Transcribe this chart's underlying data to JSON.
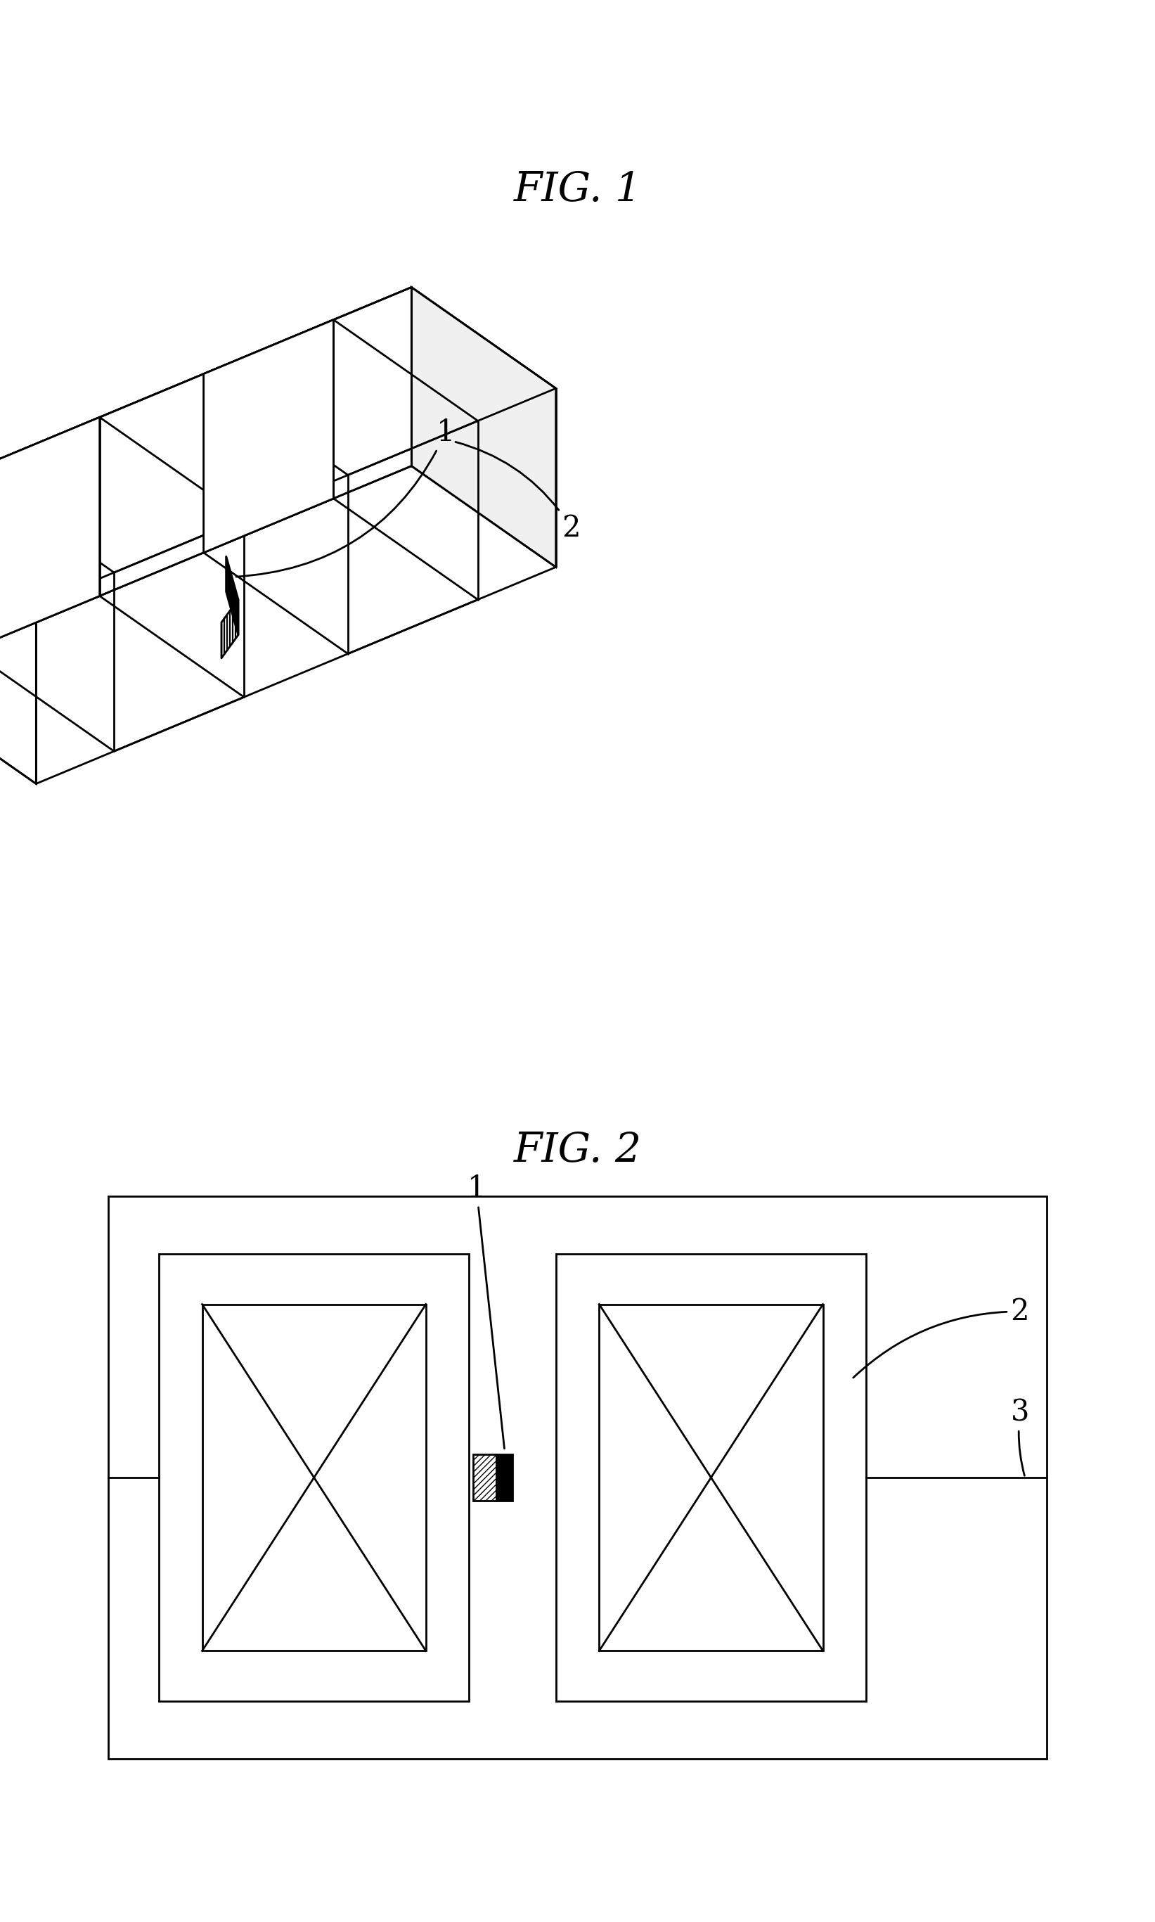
{
  "bg_color": "#ffffff",
  "line_color": "#000000",
  "fig1_title": "FIG. 1",
  "fig2_title": "FIG. 2",
  "title_fontsize": 42,
  "label_fontsize": 30,
  "lw": 2.0,
  "fig1_label1": "1",
  "fig1_label2": "2",
  "fig2_label1": "1",
  "fig2_label2": "2",
  "fig2_label3": "3",
  "iso_ox": 0.5,
  "iso_oy": 1.2,
  "iso_sx": 0.72,
  "iso_sy": 0.3,
  "iso_sz": 0.55
}
